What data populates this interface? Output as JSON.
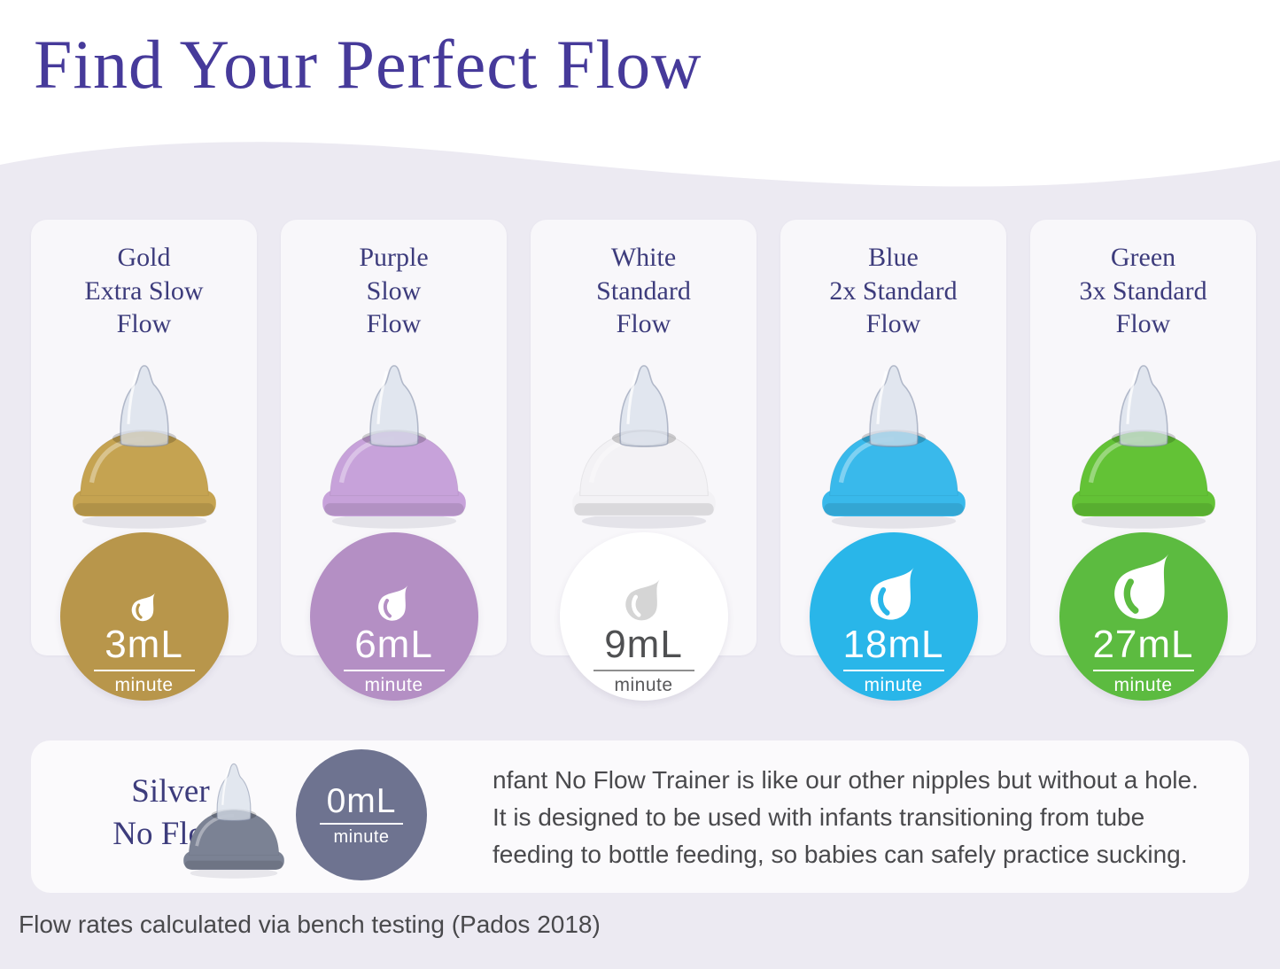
{
  "page": {
    "title": "Find Your Perfect Flow",
    "footnote": "Flow rates calculated via bench testing (Pados 2018)"
  },
  "colors": {
    "background_wave": "#eceaf2",
    "card_background": "#f8f7fa",
    "panel_background": "#fbfafc",
    "title": "#463a9a",
    "heading": "#3d3c7c",
    "body_text": "#49494c"
  },
  "columns": [
    {
      "name": "Gold\nExtra Slow\nFlow",
      "value": "3mL",
      "unit": "minute",
      "cap_color": "#c5a351",
      "circle_color": "#b8964b",
      "value_color": "#ffffff",
      "rule_color": "#ffffff",
      "unit_color": "#ffffff",
      "drop_color": "#ffffff",
      "drop_size": 40
    },
    {
      "name": "Purple\nSlow\nFlow",
      "value": "6mL",
      "unit": "minute",
      "cap_color": "#c7a2da",
      "circle_color": "#b48fc4",
      "value_color": "#ffffff",
      "rule_color": "#ffffff",
      "unit_color": "#ffffff",
      "drop_color": "#ffffff",
      "drop_size": 50
    },
    {
      "name": "White\nStandard\nFlow",
      "value": "9mL",
      "unit": "minute",
      "cap_color": "#f3f2f5",
      "circle_color": "#ffffff",
      "value_color": "#4f5052",
      "rule_color": "#8f8f8f",
      "unit_color": "#58585a",
      "drop_color": "#d5d5d5",
      "drop_size": 58
    },
    {
      "name": "Blue\n2x Standard\nFlow",
      "value": "18mL",
      "unit": "minute",
      "cap_color": "#39b9eb",
      "circle_color": "#29b6e9",
      "value_color": "#ffffff",
      "rule_color": "#ffffff",
      "unit_color": "#ffffff",
      "drop_color": "#ffffff",
      "drop_size": 74
    },
    {
      "name": "Green\n3x Standard\nFlow",
      "value": "27mL",
      "unit": "minute",
      "cap_color": "#63c236",
      "circle_color": "#5cbb40",
      "value_color": "#ffffff",
      "rule_color": "#ffffff",
      "unit_color": "#ffffff",
      "drop_color": "#ffffff",
      "drop_size": 92
    }
  ],
  "no_flow": {
    "name": "Silver\nNo Flow",
    "value": "0mL",
    "unit": "minute",
    "cap_color": "#7b8294",
    "circle_color": "#6e7390",
    "value_color": "#ffffff",
    "rule_color": "#ffffff",
    "unit_color": "#ffffff",
    "description": "nfant No Flow Trainer is like our other nipples but without a hole.\nIt is designed to be used with infants transitioning from tube\nfeeding to bottle feeding, so babies can safely practice sucking."
  }
}
